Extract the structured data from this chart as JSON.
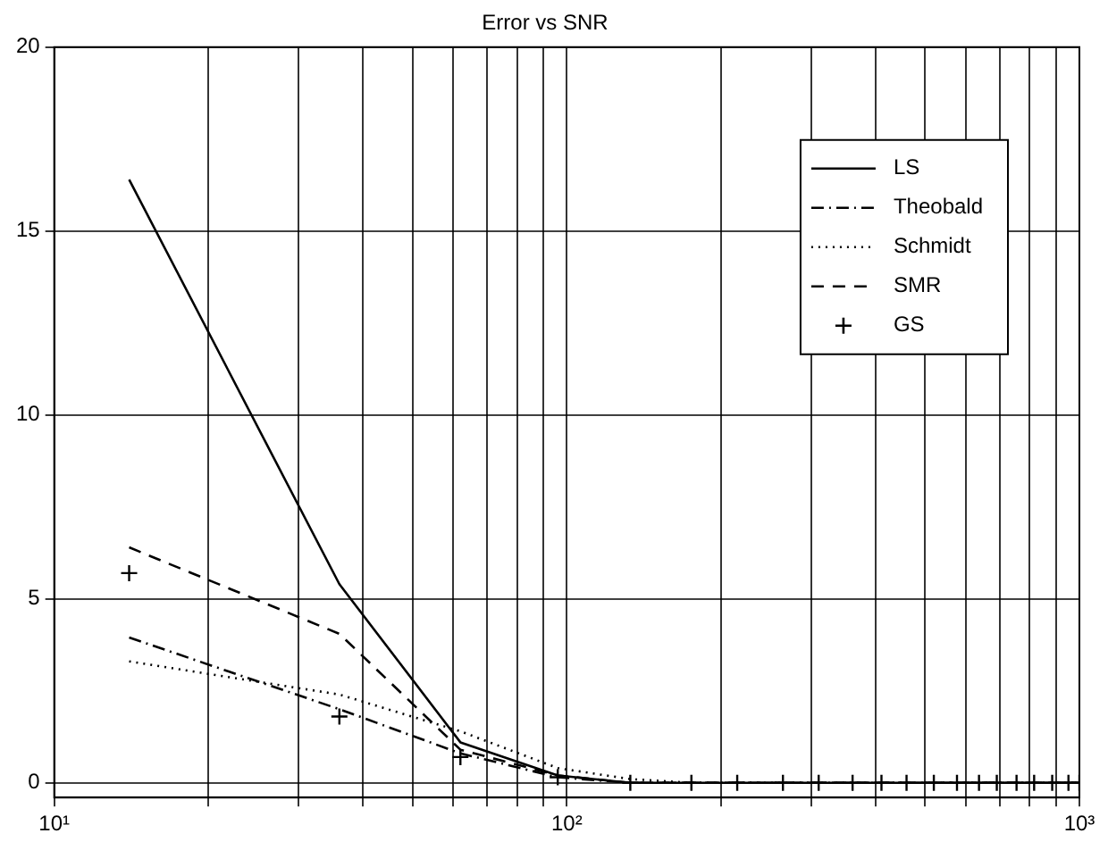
{
  "chart_data": {
    "type": "line",
    "title": "Error vs SNR",
    "x": [
      14,
      36,
      62,
      96,
      133,
      175,
      215,
      264,
      310,
      361,
      411,
      460,
      520,
      577,
      637,
      690,
      754,
      816,
      885,
      952,
      1000
    ],
    "series": [
      {
        "name": "LS",
        "color": "#000000",
        "line_style": "solid",
        "marker": "none",
        "values": [
          16.4,
          5.4,
          1.1,
          0.2,
          0,
          0,
          0,
          0,
          0,
          0,
          0,
          0,
          0,
          0,
          0,
          0,
          0,
          0,
          0,
          0,
          0
        ]
      },
      {
        "name": "Theobald",
        "color": "#000000",
        "line_style": "dashdot",
        "marker": "none",
        "values": [
          3.95,
          2.0,
          0.8,
          0.15,
          0,
          0,
          0,
          0,
          0,
          0,
          0,
          0,
          0,
          0,
          0,
          0,
          0,
          0,
          0,
          0,
          0
        ]
      },
      {
        "name": "Schmidt",
        "color": "#000000",
        "line_style": "dotted",
        "marker": "none",
        "values": [
          3.3,
          2.4,
          1.4,
          0.4,
          0.1,
          0,
          0,
          0,
          0,
          0,
          0,
          0,
          0,
          0,
          0,
          0,
          0,
          0,
          0,
          0,
          0
        ]
      },
      {
        "name": "SMR",
        "color": "#000000",
        "line_style": "dashed",
        "marker": "none",
        "values": [
          6.4,
          4.05,
          0.9,
          0.2,
          0,
          0,
          0,
          0,
          0,
          0,
          0,
          0,
          0,
          0,
          0,
          0,
          0,
          0,
          0,
          0,
          0
        ]
      },
      {
        "name": "GS",
        "color": "#000000",
        "type": "scatter",
        "marker": "cross",
        "values": [
          5.7,
          1.8,
          0.7,
          0.15,
          0,
          0,
          0,
          0,
          0,
          0,
          0,
          0,
          0,
          0,
          0,
          0,
          0,
          0,
          0,
          0,
          0
        ]
      }
    ],
    "log": "x",
    "xlim": [
      10,
      1000
    ],
    "xticks": [
      {
        "value": 10,
        "label": "10¹"
      },
      {
        "value": 20,
        "label": null
      },
      {
        "value": 30,
        "label": null
      },
      {
        "value": 40,
        "label": null
      },
      {
        "value": 50,
        "label": null
      },
      {
        "value": 60,
        "label": null
      },
      {
        "value": 70,
        "label": null
      },
      {
        "value": 80,
        "label": null
      },
      {
        "value": 90,
        "label": null
      },
      {
        "value": 100,
        "label": "10²"
      },
      {
        "value": 200,
        "label": null
      },
      {
        "value": 300,
        "label": null
      },
      {
        "value": 400,
        "label": null
      },
      {
        "value": 500,
        "label": null
      },
      {
        "value": 600,
        "label": null
      },
      {
        "value": 700,
        "label": null
      },
      {
        "value": 800,
        "label": null
      },
      {
        "value": 900,
        "label": null
      },
      {
        "value": 1000,
        "label": "10³"
      }
    ],
    "ylim": [
      -0.4,
      20
    ],
    "yticks": [
      0,
      5,
      10,
      15,
      20
    ],
    "grid": true,
    "legend": "top right"
  }
}
